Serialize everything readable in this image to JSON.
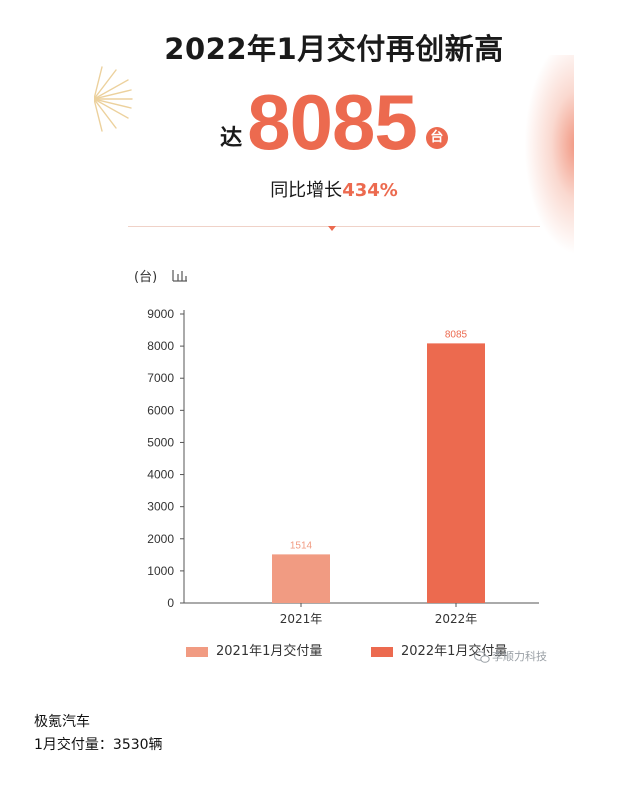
{
  "headline": "2022年1月交付再创新高",
  "highlight": {
    "prefix": "达",
    "number": "8085",
    "unit": "台"
  },
  "growth": {
    "label": "同比增长",
    "value": "434%"
  },
  "unit_label": "(台)",
  "watermark": "李顺力科技",
  "caption": {
    "brand": "极氪汽车",
    "delivery": "1月交付量：3530辆"
  },
  "colors": {
    "accent": "#ec6a4f",
    "bar_2021": "#f19b82",
    "bar_2022": "#ec6a4f"
  },
  "chart_data": {
    "type": "bar",
    "categories": [
      "2021年",
      "2022年"
    ],
    "series": [
      {
        "name": "2021年1月交付量",
        "values": [
          1514,
          null
        ]
      },
      {
        "name": "2022年1月交付量",
        "values": [
          null,
          8085
        ]
      }
    ],
    "data_labels": [
      "1514",
      "8085"
    ],
    "yticks": [
      0,
      1000,
      2000,
      3000,
      4000,
      5000,
      6000,
      7000,
      8000,
      9000
    ],
    "ylim": [
      0,
      9000
    ],
    "grid": false,
    "legend_position": "bottom"
  }
}
